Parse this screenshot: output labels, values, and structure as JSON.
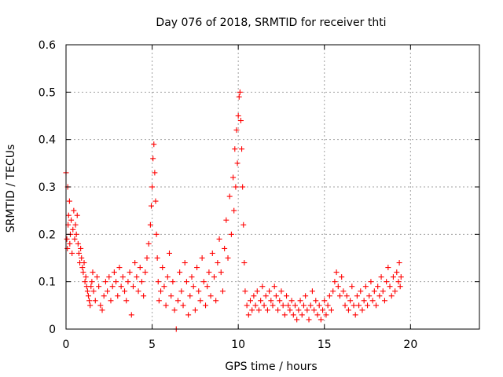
{
  "chart_data": {
    "type": "scatter",
    "title": "Day 076 of 2018, SRMTID for receiver thti",
    "xlabel": "GPS time / hours",
    "ylabel": "SRMTID / TECUs",
    "xlim": [
      0,
      24
    ],
    "ylim": [
      0,
      0.6
    ],
    "xticks": [
      0,
      5,
      10,
      15,
      20
    ],
    "xtick_labels": [
      "0",
      "5",
      "10",
      "15",
      "20"
    ],
    "yticks": [
      0,
      0.1,
      0.2,
      0.3,
      0.4,
      0.5,
      0.6
    ],
    "ytick_labels": [
      "0",
      "0.1",
      "0.2",
      "0.3",
      "0.4",
      "0.5",
      "0.6"
    ],
    "grid": true,
    "marker": "+",
    "color": "#ff0000",
    "series": [
      {
        "name": "SRMTID",
        "points": [
          [
            0.0,
            0.33
          ],
          [
            0.05,
            0.19
          ],
          [
            0.08,
            0.17
          ],
          [
            0.1,
            0.3
          ],
          [
            0.12,
            0.22
          ],
          [
            0.15,
            0.24
          ],
          [
            0.2,
            0.27
          ],
          [
            0.22,
            0.18
          ],
          [
            0.25,
            0.2
          ],
          [
            0.3,
            0.23
          ],
          [
            0.35,
            0.16
          ],
          [
            0.4,
            0.21
          ],
          [
            0.45,
            0.25
          ],
          [
            0.5,
            0.19
          ],
          [
            0.55,
            0.22
          ],
          [
            0.6,
            0.2
          ],
          [
            0.65,
            0.24
          ],
          [
            0.7,
            0.18
          ],
          [
            0.75,
            0.16
          ],
          [
            0.8,
            0.14
          ],
          [
            0.85,
            0.17
          ],
          [
            0.9,
            0.15
          ],
          [
            0.95,
            0.13
          ],
          [
            1.0,
            0.12
          ],
          [
            1.05,
            0.14
          ],
          [
            1.1,
            0.1
          ],
          [
            1.15,
            0.11
          ],
          [
            1.2,
            0.09
          ],
          [
            1.25,
            0.08
          ],
          [
            1.3,
            0.07
          ],
          [
            1.35,
            0.06
          ],
          [
            1.4,
            0.05
          ],
          [
            1.45,
            0.09
          ],
          [
            1.5,
            0.1
          ],
          [
            1.55,
            0.12
          ],
          [
            1.6,
            0.08
          ],
          [
            1.7,
            0.06
          ],
          [
            1.8,
            0.11
          ],
          [
            1.9,
            0.09
          ],
          [
            2.0,
            0.05
          ],
          [
            2.1,
            0.04
          ],
          [
            2.2,
            0.07
          ],
          [
            2.3,
            0.1
          ],
          [
            2.4,
            0.08
          ],
          [
            2.5,
            0.11
          ],
          [
            2.6,
            0.06
          ],
          [
            2.7,
            0.09
          ],
          [
            2.8,
            0.12
          ],
          [
            2.9,
            0.1
          ],
          [
            3.0,
            0.07
          ],
          [
            3.1,
            0.13
          ],
          [
            3.2,
            0.09
          ],
          [
            3.3,
            0.11
          ],
          [
            3.4,
            0.08
          ],
          [
            3.5,
            0.06
          ],
          [
            3.6,
            0.1
          ],
          [
            3.7,
            0.12
          ],
          [
            3.8,
            0.03
          ],
          [
            3.9,
            0.09
          ],
          [
            4.0,
            0.14
          ],
          [
            4.1,
            0.11
          ],
          [
            4.2,
            0.08
          ],
          [
            4.3,
            0.13
          ],
          [
            4.4,
            0.1
          ],
          [
            4.5,
            0.07
          ],
          [
            4.6,
            0.12
          ],
          [
            4.7,
            0.15
          ],
          [
            4.8,
            0.18
          ],
          [
            4.9,
            0.22
          ],
          [
            4.95,
            0.26
          ],
          [
            5.0,
            0.3
          ],
          [
            5.05,
            0.36
          ],
          [
            5.1,
            0.39
          ],
          [
            5.15,
            0.33
          ],
          [
            5.2,
            0.27
          ],
          [
            5.25,
            0.2
          ],
          [
            5.3,
            0.15
          ],
          [
            5.35,
            0.1
          ],
          [
            5.4,
            0.06
          ],
          [
            5.5,
            0.08
          ],
          [
            5.6,
            0.13
          ],
          [
            5.7,
            0.09
          ],
          [
            5.8,
            0.05
          ],
          [
            5.9,
            0.11
          ],
          [
            6.0,
            0.16
          ],
          [
            6.1,
            0.07
          ],
          [
            6.2,
            0.1
          ],
          [
            6.3,
            0.04
          ],
          [
            6.4,
            0.0
          ],
          [
            6.5,
            0.06
          ],
          [
            6.6,
            0.12
          ],
          [
            6.7,
            0.08
          ],
          [
            6.8,
            0.05
          ],
          [
            6.9,
            0.14
          ],
          [
            7.0,
            0.1
          ],
          [
            7.1,
            0.03
          ],
          [
            7.2,
            0.07
          ],
          [
            7.3,
            0.11
          ],
          [
            7.4,
            0.09
          ],
          [
            7.5,
            0.04
          ],
          [
            7.6,
            0.13
          ],
          [
            7.7,
            0.08
          ],
          [
            7.8,
            0.06
          ],
          [
            7.9,
            0.15
          ],
          [
            8.0,
            0.1
          ],
          [
            8.1,
            0.05
          ],
          [
            8.2,
            0.09
          ],
          [
            8.3,
            0.12
          ],
          [
            8.4,
            0.07
          ],
          [
            8.5,
            0.16
          ],
          [
            8.6,
            0.11
          ],
          [
            8.7,
            0.06
          ],
          [
            8.8,
            0.14
          ],
          [
            8.9,
            0.19
          ],
          [
            9.0,
            0.12
          ],
          [
            9.1,
            0.08
          ],
          [
            9.2,
            0.17
          ],
          [
            9.3,
            0.23
          ],
          [
            9.4,
            0.15
          ],
          [
            9.5,
            0.28
          ],
          [
            9.6,
            0.2
          ],
          [
            9.7,
            0.32
          ],
          [
            9.75,
            0.25
          ],
          [
            9.8,
            0.38
          ],
          [
            9.85,
            0.3
          ],
          [
            9.9,
            0.42
          ],
          [
            9.95,
            0.35
          ],
          [
            10.0,
            0.45
          ],
          [
            10.05,
            0.49
          ],
          [
            10.1,
            0.5
          ],
          [
            10.15,
            0.44
          ],
          [
            10.2,
            0.38
          ],
          [
            10.25,
            0.3
          ],
          [
            10.3,
            0.22
          ],
          [
            10.35,
            0.14
          ],
          [
            10.4,
            0.08
          ],
          [
            10.5,
            0.05
          ],
          [
            10.6,
            0.03
          ],
          [
            10.7,
            0.06
          ],
          [
            10.8,
            0.04
          ],
          [
            10.9,
            0.07
          ],
          [
            11.0,
            0.05
          ],
          [
            11.1,
            0.08
          ],
          [
            11.2,
            0.04
          ],
          [
            11.3,
            0.06
          ],
          [
            11.4,
            0.09
          ],
          [
            11.5,
            0.05
          ],
          [
            11.6,
            0.07
          ],
          [
            11.7,
            0.04
          ],
          [
            11.8,
            0.08
          ],
          [
            11.9,
            0.06
          ],
          [
            12.0,
            0.05
          ],
          [
            12.1,
            0.09
          ],
          [
            12.2,
            0.07
          ],
          [
            12.3,
            0.04
          ],
          [
            12.4,
            0.06
          ],
          [
            12.5,
            0.08
          ],
          [
            12.6,
            0.05
          ],
          [
            12.7,
            0.03
          ],
          [
            12.8,
            0.07
          ],
          [
            12.9,
            0.05
          ],
          [
            13.0,
            0.04
          ],
          [
            13.1,
            0.06
          ],
          [
            13.2,
            0.03
          ],
          [
            13.3,
            0.05
          ],
          [
            13.4,
            0.02
          ],
          [
            13.5,
            0.04
          ],
          [
            13.6,
            0.06
          ],
          [
            13.7,
            0.03
          ],
          [
            13.8,
            0.05
          ],
          [
            13.9,
            0.07
          ],
          [
            14.0,
            0.04
          ],
          [
            14.1,
            0.02
          ],
          [
            14.2,
            0.05
          ],
          [
            14.3,
            0.08
          ],
          [
            14.4,
            0.04
          ],
          [
            14.5,
            0.06
          ],
          [
            14.6,
            0.03
          ],
          [
            14.7,
            0.05
          ],
          [
            14.8,
            0.02
          ],
          [
            14.9,
            0.04
          ],
          [
            15.0,
            0.06
          ],
          [
            15.1,
            0.03
          ],
          [
            15.2,
            0.05
          ],
          [
            15.3,
            0.07
          ],
          [
            15.4,
            0.04
          ],
          [
            15.5,
            0.08
          ],
          [
            15.6,
            0.1
          ],
          [
            15.7,
            0.12
          ],
          [
            15.8,
            0.09
          ],
          [
            15.9,
            0.07
          ],
          [
            16.0,
            0.11
          ],
          [
            16.1,
            0.08
          ],
          [
            16.2,
            0.05
          ],
          [
            16.3,
            0.07
          ],
          [
            16.4,
            0.04
          ],
          [
            16.5,
            0.06
          ],
          [
            16.6,
            0.09
          ],
          [
            16.7,
            0.05
          ],
          [
            16.8,
            0.03
          ],
          [
            16.9,
            0.07
          ],
          [
            17.0,
            0.05
          ],
          [
            17.1,
            0.08
          ],
          [
            17.2,
            0.04
          ],
          [
            17.3,
            0.06
          ],
          [
            17.4,
            0.09
          ],
          [
            17.5,
            0.05
          ],
          [
            17.6,
            0.07
          ],
          [
            17.7,
            0.1
          ],
          [
            17.8,
            0.06
          ],
          [
            17.9,
            0.08
          ],
          [
            18.0,
            0.05
          ],
          [
            18.1,
            0.09
          ],
          [
            18.2,
            0.07
          ],
          [
            18.3,
            0.11
          ],
          [
            18.4,
            0.08
          ],
          [
            18.5,
            0.06
          ],
          [
            18.6,
            0.1
          ],
          [
            18.7,
            0.13
          ],
          [
            18.8,
            0.09
          ],
          [
            18.9,
            0.07
          ],
          [
            19.0,
            0.11
          ],
          [
            19.1,
            0.08
          ],
          [
            19.2,
            0.12
          ],
          [
            19.3,
            0.1
          ],
          [
            19.35,
            0.14
          ],
          [
            19.4,
            0.09
          ],
          [
            19.45,
            0.11
          ]
        ]
      }
    ]
  }
}
